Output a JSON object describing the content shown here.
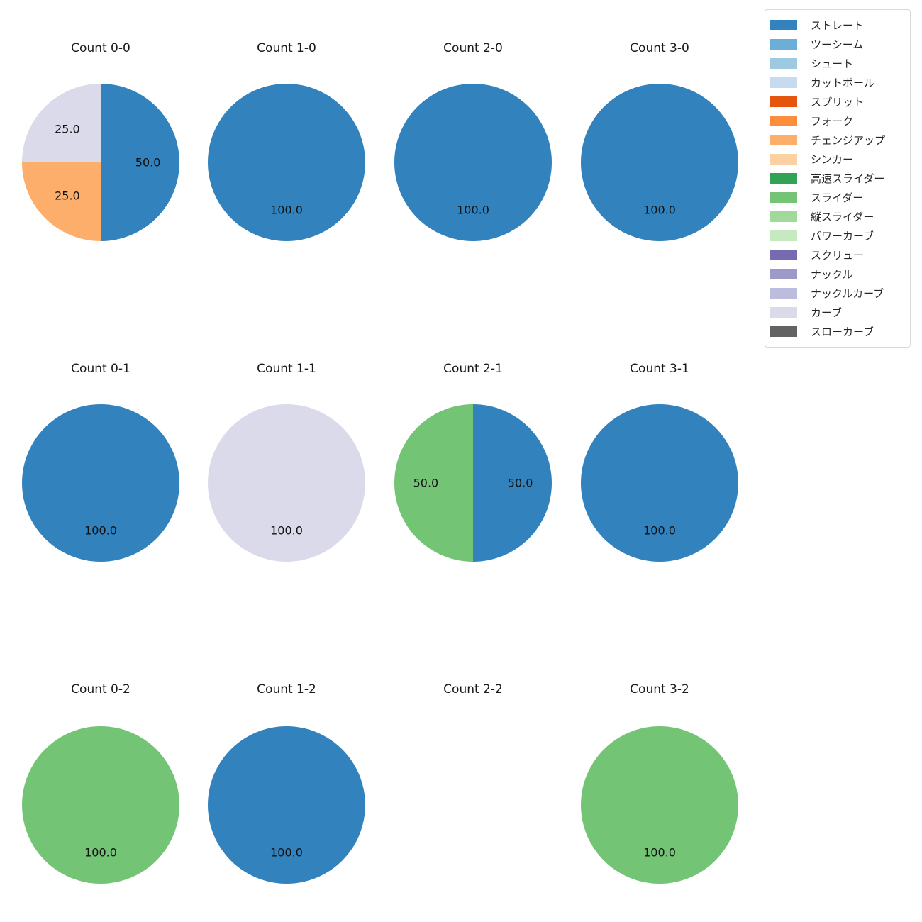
{
  "figure": {
    "background_color": "#ffffff",
    "text_color": "#1a1a1a"
  },
  "legend": {
    "position": "top-right",
    "items": [
      {
        "label": "ストレート",
        "color": "#3182bd"
      },
      {
        "label": "ツーシーム",
        "color": "#6baed6"
      },
      {
        "label": "シュート",
        "color": "#9ecae1"
      },
      {
        "label": "カットボール",
        "color": "#c6dbef"
      },
      {
        "label": "スプリット",
        "color": "#e6550d"
      },
      {
        "label": "フォーク",
        "color": "#fd8d3c"
      },
      {
        "label": "チェンジアップ",
        "color": "#fdae6b"
      },
      {
        "label": "シンカー",
        "color": "#fdd0a2"
      },
      {
        "label": "高速スライダー",
        "color": "#31a354"
      },
      {
        "label": "スライダー",
        "color": "#74c476"
      },
      {
        "label": "縦スライダー",
        "color": "#a1d99b"
      },
      {
        "label": "パワーカーブ",
        "color": "#c7e9c0"
      },
      {
        "label": "スクリュー",
        "color": "#756bb1"
      },
      {
        "label": "ナックル",
        "color": "#9e9ac8"
      },
      {
        "label": "ナックルカーブ",
        "color": "#bcbddc"
      },
      {
        "label": "カーブ",
        "color": "#dadaeb"
      },
      {
        "label": "スローカーブ",
        "color": "#636363"
      }
    ]
  },
  "chart_data": {
    "type": "pie",
    "grid": {
      "rows": 3,
      "cols": 4
    },
    "start_angle": "top",
    "direction": "clockwise",
    "value_format": "one_decimal_percent",
    "label_radius_fraction": 0.6,
    "charts": [
      {
        "title": "Count 0-0",
        "slices": [
          {
            "label": "ストレート",
            "value": 50
          },
          {
            "label": "チェンジアップ",
            "value": 25
          },
          {
            "label": "カーブ",
            "value": 25
          }
        ]
      },
      {
        "title": "Count 1-0",
        "slices": [
          {
            "label": "ストレート",
            "value": 100
          }
        ]
      },
      {
        "title": "Count 2-0",
        "slices": [
          {
            "label": "ストレート",
            "value": 100
          }
        ]
      },
      {
        "title": "Count 3-0",
        "slices": [
          {
            "label": "ストレート",
            "value": 100
          }
        ]
      },
      {
        "title": "Count 0-1",
        "slices": [
          {
            "label": "ストレート",
            "value": 100
          }
        ]
      },
      {
        "title": "Count 1-1",
        "slices": [
          {
            "label": "カーブ",
            "value": 100
          }
        ]
      },
      {
        "title": "Count 2-1",
        "slices": [
          {
            "label": "ストレート",
            "value": 50
          },
          {
            "label": "スライダー",
            "value": 50
          }
        ]
      },
      {
        "title": "Count 3-1",
        "slices": [
          {
            "label": "ストレート",
            "value": 100
          }
        ]
      },
      {
        "title": "Count 0-2",
        "slices": [
          {
            "label": "スライダー",
            "value": 100
          }
        ]
      },
      {
        "title": "Count 1-2",
        "slices": [
          {
            "label": "ストレート",
            "value": 100
          }
        ]
      },
      {
        "title": "Count 2-2",
        "slices": []
      },
      {
        "title": "Count 3-2",
        "slices": [
          {
            "label": "スライダー",
            "value": 100
          }
        ]
      }
    ]
  }
}
